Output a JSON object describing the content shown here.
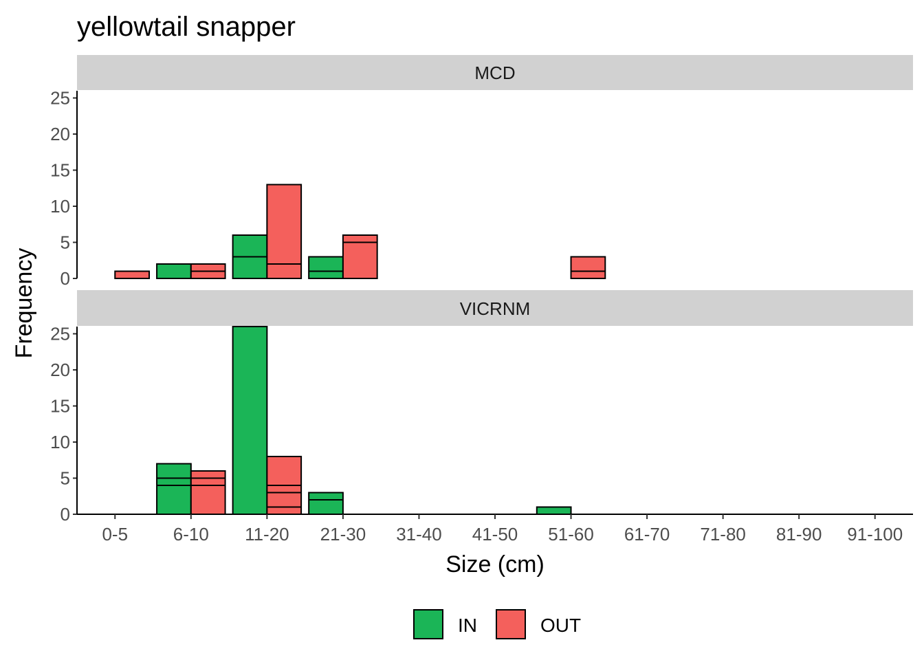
{
  "chart_data": {
    "type": "bar",
    "title": "yellowtail snapper",
    "xlabel": "Size (cm)",
    "ylabel": "Frequency",
    "ylim": [
      0,
      26
    ],
    "yticks": [
      0,
      5,
      10,
      15,
      20,
      25
    ],
    "categories": [
      "0-5",
      "6-10",
      "11-20",
      "21-30",
      "31-40",
      "41-50",
      "51-60",
      "61-70",
      "71-80",
      "81-90",
      "91-100"
    ],
    "legend": {
      "placement": "bottom",
      "entries": [
        {
          "label": "IN",
          "color": "#1bb557"
        },
        {
          "label": "OUT",
          "color": "#f4605c"
        }
      ]
    },
    "facets": [
      {
        "label": "MCD",
        "series": [
          {
            "key": "IN",
            "values": [
              0,
              2,
              6,
              3,
              0,
              0,
              0,
              0,
              0,
              0,
              0
            ],
            "segment_lines": [
              [],
              [],
              [
                3
              ],
              [
                1
              ],
              [],
              [],
              [],
              [],
              [],
              [],
              []
            ]
          },
          {
            "key": "OUT",
            "values": [
              1,
              2,
              13,
              6,
              0,
              0,
              3,
              0,
              0,
              0,
              0
            ],
            "segment_lines": [
              [],
              [
                1
              ],
              [
                2
              ],
              [
                5
              ],
              [],
              [],
              [
                1
              ],
              [],
              [],
              [],
              []
            ]
          }
        ]
      },
      {
        "label": "VICRNM",
        "series": [
          {
            "key": "IN",
            "values": [
              0,
              7,
              26,
              3,
              0,
              0,
              1,
              0,
              0,
              0,
              0
            ],
            "segment_lines": [
              [],
              [
                4,
                5
              ],
              [],
              [
                2
              ],
              [],
              [],
              [],
              [],
              [],
              [],
              []
            ]
          },
          {
            "key": "OUT",
            "values": [
              0,
              6,
              8,
              0,
              0,
              0,
              0,
              0,
              0,
              0,
              0
            ],
            "segment_lines": [
              [],
              [
                4,
                5
              ],
              [
                1,
                3,
                4
              ],
              [],
              [],
              [],
              [],
              [],
              [],
              [],
              []
            ]
          }
        ]
      }
    ]
  }
}
